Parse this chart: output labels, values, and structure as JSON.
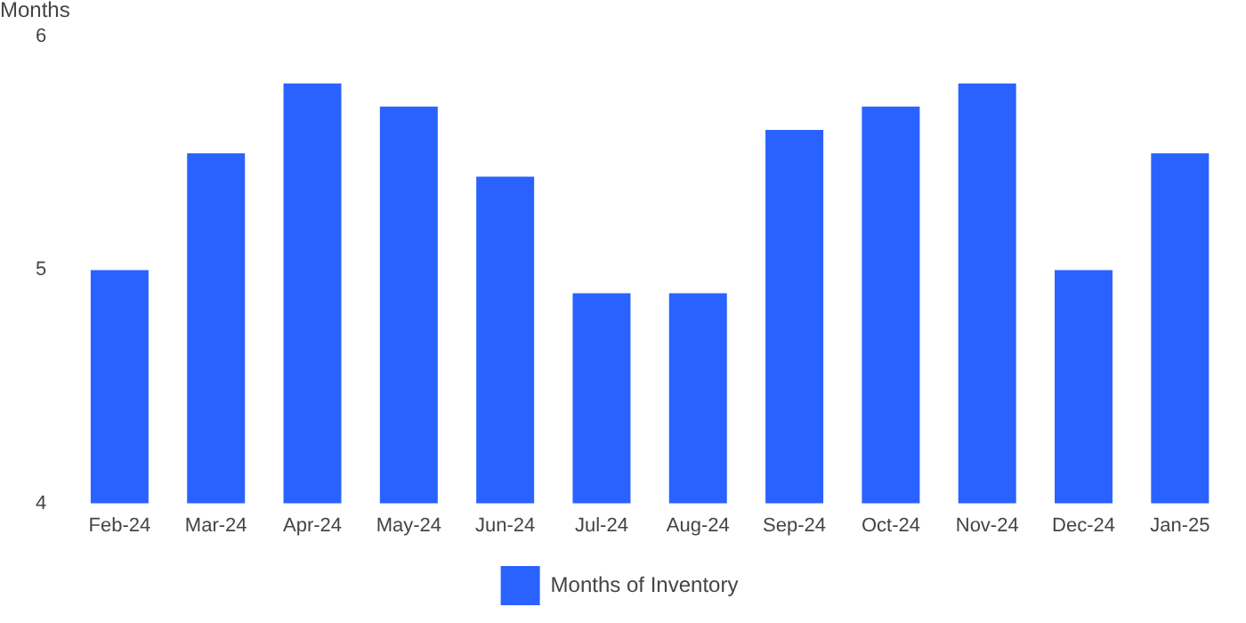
{
  "chart_data": {
    "type": "bar",
    "ylabel": "Months",
    "categories": [
      "Feb-24",
      "Mar-24",
      "Apr-24",
      "May-24",
      "Jun-24",
      "Jul-24",
      "Aug-24",
      "Sep-24",
      "Oct-24",
      "Nov-24",
      "Dec-24",
      "Jan-25"
    ],
    "series": [
      {
        "name": "Months of Inventory",
        "color": "#2962ff",
        "values": [
          5.0,
          5.5,
          5.8,
          5.7,
          5.4,
          4.9,
          4.9,
          5.6,
          5.7,
          5.8,
          5.0,
          5.5
        ]
      }
    ],
    "ylim": [
      4,
      6
    ],
    "yticks": [
      4,
      5,
      6
    ],
    "grid": false,
    "legend": "bottom"
  }
}
